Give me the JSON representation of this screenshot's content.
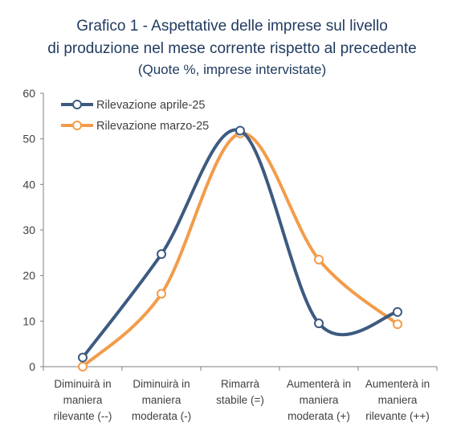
{
  "chart_data": {
    "type": "line",
    "title_lines": [
      "Grafico 1 - Aspettative delle imprese sul livello",
      "di produzione nel mese corrente rispetto al precedente"
    ],
    "subtitle": "(Quote %, imprese intervistate)",
    "categories": [
      [
        "Diminuirà in",
        "maniera",
        "rilevante (--)"
      ],
      [
        "Diminuirà in",
        "maniera",
        "moderata (-)"
      ],
      [
        "Rimarrà",
        "stabile (=)"
      ],
      [
        "Aumenterà in",
        "maniera",
        "moderata (+)"
      ],
      [
        "Aumenterà in",
        "maniera",
        "rilevante (++)"
      ]
    ],
    "yticks": [
      "0",
      "10",
      "20",
      "30",
      "40",
      "50",
      "60"
    ],
    "ylim": [
      0,
      60
    ],
    "grid": false,
    "legend_position": "top-left",
    "series": [
      {
        "name": "Rilevazione aprile-25",
        "color": "#3d5a80",
        "values": [
          2,
          24.7,
          51.8,
          9.5,
          12
        ]
      },
      {
        "name": "Rilevazione marzo-25",
        "color": "#f39c4a",
        "values": [
          0,
          16,
          51.2,
          23.5,
          9.3
        ]
      }
    ]
  }
}
